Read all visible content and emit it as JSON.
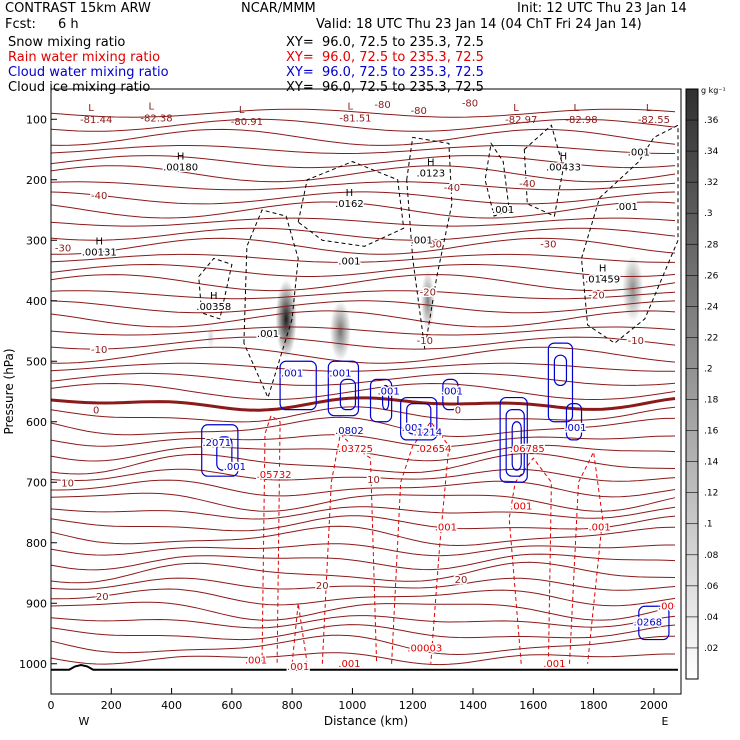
{
  "header": {
    "model": "CONTRAST 15km ARW",
    "center": "NCAR/MMM",
    "init": "Init: 12 UTC Thu 23 Jan 14",
    "fcst_label": "Fcst:",
    "fcst_value": "6 h",
    "valid": "Valid: 18 UTC Thu 23 Jan 14 (04 ChT Fri 24 Jan 14)"
  },
  "legend": [
    {
      "field": "Snow mixing ratio",
      "xy": "XY=  96.0, 72.5 to 235.3, 72.5",
      "color": "#000000"
    },
    {
      "field": "Rain water mixing ratio",
      "xy": "XY=  96.0, 72.5 to 235.3, 72.5",
      "color": "#e00000"
    },
    {
      "field": "Cloud water mixing ratio",
      "xy": "XY=  96.0, 72.5 to 235.3, 72.5",
      "color": "#0000cc"
    },
    {
      "field": "Cloud ice mixing ratio",
      "xy": "XY=  96.0, 72.5 to 235.3, 72.5",
      "color": "#000000"
    }
  ],
  "chart_data": {
    "type": "heatmap",
    "xlabel": "Distance (km)",
    "ylabel": "Pressure (hPa)",
    "xlim": [
      0,
      2090
    ],
    "ylim": [
      50,
      1050
    ],
    "x_ticks": [
      0,
      200,
      400,
      600,
      800,
      1000,
      1200,
      1400,
      1600,
      1800,
      2000
    ],
    "y_ticks": [
      100,
      200,
      300,
      400,
      500,
      600,
      700,
      800,
      900,
      1000
    ],
    "x_end_labels": {
      "left": "W",
      "right": "E"
    },
    "colorbar": {
      "unit": "g kg⁻¹",
      "ticks": [
        ".02",
        ".04",
        ".06",
        ".08",
        ".1",
        ".12",
        ".14",
        ".16",
        ".18",
        ".2",
        ".22",
        ".24",
        ".26",
        ".28",
        ".3",
        ".32",
        ".34",
        ".36"
      ]
    },
    "temperature_contours": [
      {
        "p": 85,
        "label": "-80"
      },
      {
        "p": 210,
        "label": "-40"
      },
      {
        "p": 290,
        "label": "-30"
      },
      {
        "p": 380,
        "label": "-20"
      },
      {
        "p": 470,
        "label": "-10"
      },
      {
        "p": 578,
        "label": "0"
      },
      {
        "p": 680,
        "label": "10"
      },
      {
        "p": 880,
        "label": "20"
      }
    ],
    "temperature_labels": [
      {
        "x": 160,
        "p": 225,
        "text": "-40"
      },
      {
        "x": 1330,
        "p": 212,
        "text": "-40"
      },
      {
        "x": 1580,
        "p": 205,
        "text": "-40"
      },
      {
        "x": 40,
        "p": 312,
        "text": "-30"
      },
      {
        "x": 1270,
        "p": 305,
        "text": "-30"
      },
      {
        "x": 1650,
        "p": 305,
        "text": "-30"
      },
      {
        "x": 1250,
        "p": 385,
        "text": "-20"
      },
      {
        "x": 1810,
        "p": 390,
        "text": "-20"
      },
      {
        "x": 160,
        "p": 480,
        "text": "-10"
      },
      {
        "x": 1240,
        "p": 465,
        "text": "-10"
      },
      {
        "x": 1940,
        "p": 465,
        "text": "-10"
      },
      {
        "x": 150,
        "p": 580,
        "text": "0"
      },
      {
        "x": 1350,
        "p": 580,
        "text": "0"
      },
      {
        "x": 55,
        "p": 700,
        "text": "10"
      },
      {
        "x": 1070,
        "p": 695,
        "text": "10"
      },
      {
        "x": 170,
        "p": 888,
        "text": "20"
      },
      {
        "x": 900,
        "p": 870,
        "text": "20"
      },
      {
        "x": 1360,
        "p": 860,
        "text": "20"
      },
      {
        "x": 1100,
        "p": 75,
        "text": "-80"
      },
      {
        "x": 1220,
        "p": 85,
        "text": "-80"
      },
      {
        "x": 1390,
        "p": 72,
        "text": "-80"
      }
    ],
    "low_labels": [
      {
        "x": 150,
        "p": 95,
        "value": "-81.44"
      },
      {
        "x": 350,
        "p": 92,
        "value": "-82.38"
      },
      {
        "x": 650,
        "p": 98,
        "value": "-80.91"
      },
      {
        "x": 1010,
        "p": 92,
        "value": "-81.51"
      },
      {
        "x": 1560,
        "p": 95,
        "value": "-82.97"
      },
      {
        "x": 1760,
        "p": 95,
        "value": "-82.98"
      },
      {
        "x": 2000,
        "p": 95,
        "value": "-82.55"
      }
    ],
    "snow_extrema": [
      {
        "x": 430,
        "p": 180,
        "value": ".00180"
      },
      {
        "x": 990,
        "p": 240,
        "value": ".0162"
      },
      {
        "x": 1260,
        "p": 190,
        "value": ".0123"
      },
      {
        "x": 1700,
        "p": 180,
        "value": ".00433"
      },
      {
        "x": 160,
        "p": 320,
        "value": ".00131"
      },
      {
        "x": 540,
        "p": 410,
        "value": ".00358"
      },
      {
        "x": 1830,
        "p": 365,
        "value": ".01459"
      }
    ],
    "ice_labels": [
      {
        "x": 1950,
        "p": 155,
        "value": ".001"
      },
      {
        "x": 1910,
        "p": 245,
        "value": ".001"
      },
      {
        "x": 1500,
        "p": 250,
        "value": ".001"
      },
      {
        "x": 1230,
        "p": 300,
        "value": ".001"
      },
      {
        "x": 990,
        "p": 335,
        "value": ".001"
      },
      {
        "x": 720,
        "p": 455,
        "value": ".001"
      }
    ],
    "rain_labels": [
      {
        "x": 740,
        "p": 688,
        "value": ".05732"
      },
      {
        "x": 1270,
        "p": 645,
        "value": ".02654"
      },
      {
        "x": 1010,
        "p": 645,
        "value": ".03725"
      },
      {
        "x": 1580,
        "p": 645,
        "value": ".06785"
      },
      {
        "x": 1240,
        "p": 975,
        "value": ".00003"
      },
      {
        "x": 680,
        "p": 995,
        "value": ".001"
      },
      {
        "x": 820,
        "p": 1005,
        "value": ".001"
      },
      {
        "x": 990,
        "p": 1000,
        "value": ".001"
      },
      {
        "x": 1670,
        "p": 1000,
        "value": ".001"
      },
      {
        "x": 1310,
        "p": 775,
        "value": ".001"
      },
      {
        "x": 1820,
        "p": 775,
        "value": ".001"
      },
      {
        "x": 1560,
        "p": 740,
        "value": ".001"
      },
      {
        "x": 2040,
        "p": 905,
        "value": ".00"
      }
    ],
    "cloud_labels": [
      {
        "x": 550,
        "p": 635,
        "value": ".2071"
      },
      {
        "x": 610,
        "p": 675,
        "value": ".001"
      },
      {
        "x": 800,
        "p": 520,
        "value": ".001"
      },
      {
        "x": 960,
        "p": 520,
        "value": ".001"
      },
      {
        "x": 990,
        "p": 615,
        "value": ".0802"
      },
      {
        "x": 1120,
        "p": 550,
        "value": ".001"
      },
      {
        "x": 1200,
        "p": 610,
        "value": ".001"
      },
      {
        "x": 1250,
        "p": 618,
        "value": ".1214"
      },
      {
        "x": 1330,
        "p": 550,
        "value": ".001"
      },
      {
        "x": 1740,
        "p": 610,
        "value": ".001"
      },
      {
        "x": 1980,
        "p": 932,
        "value": ".0268"
      }
    ],
    "snow_cores": [
      {
        "x": 780,
        "p": 430,
        "w": 70,
        "dp": 130,
        "max": 0.36
      },
      {
        "x": 960,
        "p": 450,
        "w": 70,
        "dp": 100,
        "max": 0.22
      },
      {
        "x": 1250,
        "p": 400,
        "w": 45,
        "dp": 100,
        "max": 0.2
      },
      {
        "x": 1930,
        "p": 380,
        "w": 70,
        "dp": 110,
        "max": 0.18
      },
      {
        "x": 530,
        "p": 460,
        "w": 25,
        "dp": 40,
        "max": 0.06
      }
    ]
  }
}
